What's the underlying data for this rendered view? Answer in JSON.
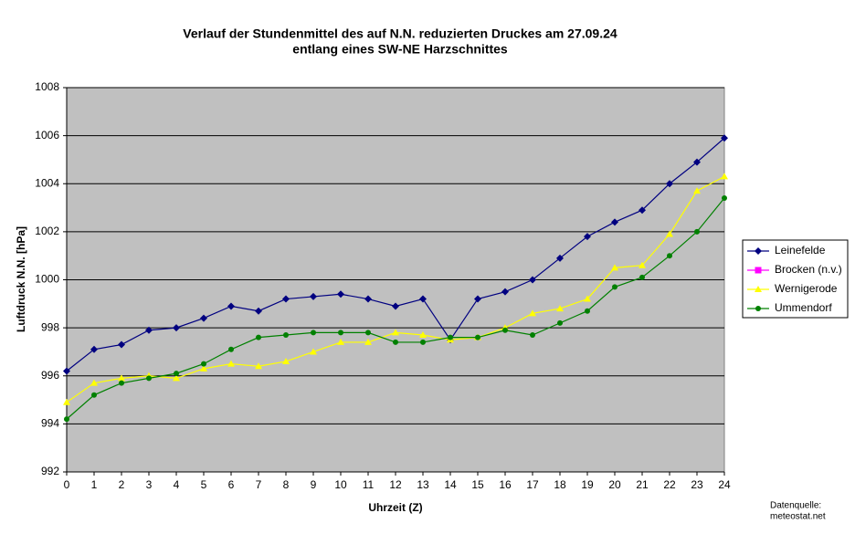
{
  "chart_data": {
    "type": "line",
    "title": [
      "Verlauf der Stundenmittel des auf N.N. reduzierten Druckes am 27.09.24",
      "entlang eines SW-NE Harzschnittes"
    ],
    "x_label": "Uhrzeit (Z)",
    "y_label": "Luftdruck N.N. [hPa]",
    "source": [
      "Datenquelle:",
      "meteostat.net"
    ],
    "x": [
      0,
      1,
      2,
      3,
      4,
      5,
      6,
      7,
      8,
      9,
      10,
      11,
      12,
      13,
      14,
      15,
      16,
      17,
      18,
      19,
      20,
      21,
      22,
      23,
      24
    ],
    "xlim": [
      0,
      24
    ],
    "xticks": [
      0,
      1,
      2,
      3,
      4,
      5,
      6,
      7,
      8,
      9,
      10,
      11,
      12,
      13,
      14,
      15,
      16,
      17,
      18,
      19,
      20,
      21,
      22,
      23,
      24
    ],
    "ylim": [
      992,
      1008
    ],
    "yticks": [
      992,
      994,
      996,
      998,
      1000,
      1002,
      1004,
      1006,
      1008
    ],
    "grid": true,
    "plot_background": "#c0c0c0",
    "legend": "right",
    "series": [
      {
        "name": "Leinefelde",
        "color": "#000080",
        "marker": "diamond",
        "values": [
          996.2,
          997.1,
          997.3,
          997.9,
          998.0,
          998.4,
          998.9,
          998.7,
          999.2,
          999.3,
          999.4,
          999.2,
          998.9,
          999.2,
          997.5,
          999.2,
          999.5,
          1000.0,
          1000.9,
          1001.8,
          1002.4,
          1002.9,
          1004.0,
          1004.9,
          1005.9
        ]
      },
      {
        "name": "Brocken (n.v.)",
        "color": "#ff00ff",
        "marker": "square",
        "values": [
          null,
          null,
          null,
          null,
          null,
          null,
          null,
          null,
          null,
          null,
          null,
          null,
          null,
          null,
          null,
          null,
          null,
          null,
          null,
          null,
          null,
          null,
          null,
          null,
          null
        ]
      },
      {
        "name": "Wernigerode",
        "color": "#ffff00",
        "marker": "triangle",
        "values": [
          994.9,
          995.7,
          995.9,
          996.0,
          995.9,
          996.3,
          996.5,
          996.4,
          996.6,
          997.0,
          997.4,
          997.4,
          997.8,
          997.7,
          997.5,
          997.6,
          998.0,
          998.6,
          998.8,
          999.2,
          1000.5,
          1000.6,
          1001.9,
          1003.7,
          1004.3
        ]
      },
      {
        "name": "Ummendorf",
        "color": "#008000",
        "marker": "circle",
        "values": [
          994.2,
          995.2,
          995.7,
          995.9,
          996.1,
          996.5,
          997.1,
          997.6,
          997.7,
          997.8,
          997.8,
          997.8,
          997.4,
          997.4,
          997.6,
          997.6,
          997.9,
          997.7,
          998.2,
          998.7,
          999.7,
          1000.1,
          1001.0,
          1002.0,
          1003.4
        ]
      }
    ]
  }
}
